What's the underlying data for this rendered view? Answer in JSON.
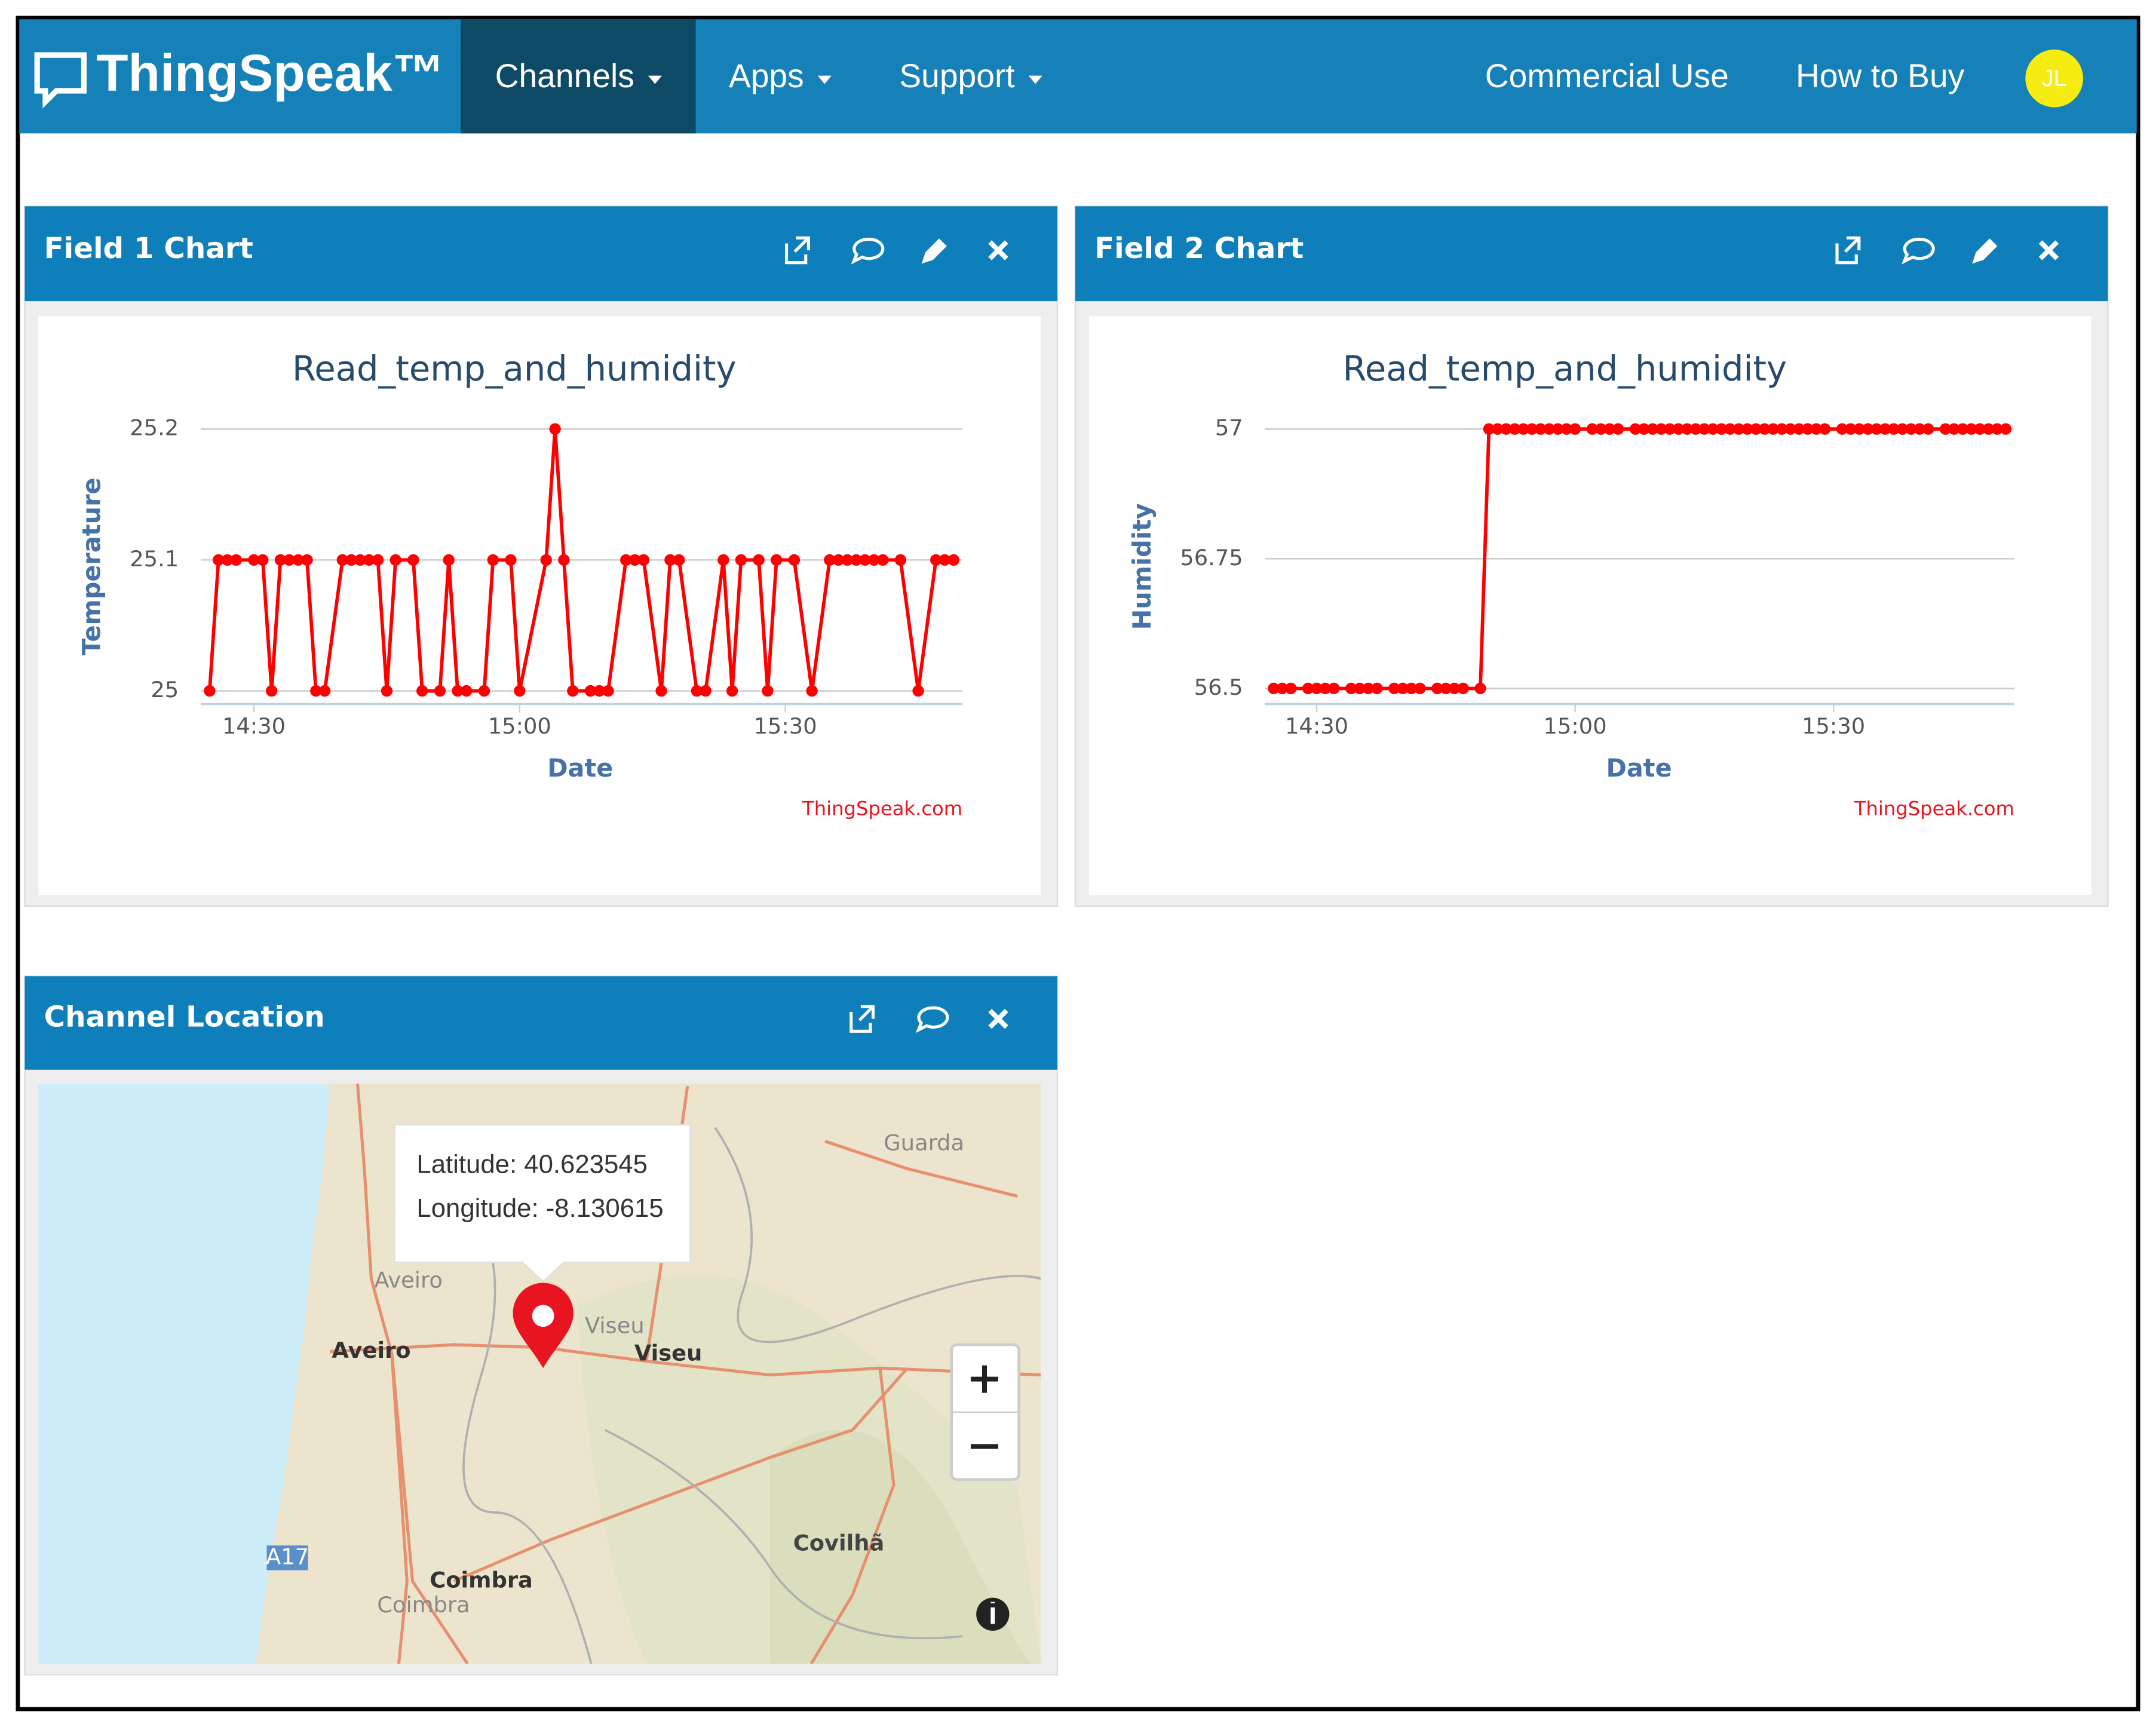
{
  "nav": {
    "logo": "ThingSpeak™",
    "menus": [
      "Channels",
      "Apps",
      "Support"
    ],
    "links": [
      "Commercial Use",
      "How to Buy"
    ],
    "avatar": "JL"
  },
  "panels": [
    {
      "title": "Field 1 Chart"
    },
    {
      "title": "Field 2 Chart"
    },
    {
      "title": "Channel Location"
    }
  ],
  "chart_data": [
    {
      "type": "line",
      "title": "Read_temp_and_humidity",
      "xlabel": "Date",
      "ylabel": "Temperature",
      "credit": "ThingSpeak.com",
      "color": "#ff0000",
      "grid": true,
      "x": [
        "14:25",
        "14:26",
        "14:27",
        "14:28",
        "14:30",
        "14:31",
        "14:32",
        "14:33",
        "14:34",
        "14:35",
        "14:36",
        "14:37",
        "14:38",
        "14:40",
        "14:41",
        "14:42",
        "14:43",
        "14:44",
        "14:45",
        "14:46",
        "14:48",
        "14:49",
        "14:51",
        "14:52",
        "14:53",
        "14:54",
        "14:56",
        "14:57",
        "14:59",
        "15:00",
        "15:03",
        "15:04",
        "15:05",
        "15:06",
        "15:08",
        "15:09",
        "15:10",
        "15:12",
        "15:13",
        "15:14",
        "15:16",
        "15:17",
        "15:18",
        "15:20",
        "15:21",
        "15:23",
        "15:24",
        "15:25",
        "15:27",
        "15:28",
        "15:29",
        "15:31",
        "15:33",
        "15:35",
        "15:36",
        "15:37",
        "15:38",
        "15:39",
        "15:40",
        "15:41",
        "15:43",
        "15:45",
        "15:47",
        "15:48",
        "15:49"
      ],
      "values": [
        25,
        25.1,
        25.1,
        25.1,
        25.1,
        25.1,
        25,
        25.1,
        25.1,
        25.1,
        25.1,
        25,
        25,
        25.1,
        25.1,
        25.1,
        25.1,
        25.1,
        25,
        25.1,
        25.1,
        25,
        25,
        25.1,
        25,
        25,
        25,
        25.1,
        25.1,
        25,
        25.1,
        25.2,
        25.1,
        25,
        25,
        25,
        25,
        25.1,
        25.1,
        25.1,
        25,
        25.1,
        25.1,
        25,
        25,
        25.1,
        25,
        25.1,
        25.1,
        25,
        25.1,
        25.1,
        25,
        25.1,
        25.1,
        25.1,
        25.1,
        25.1,
        25.1,
        25.1,
        25.1,
        25,
        25.1,
        25.1,
        25.1
      ],
      "xlim": [
        "14:24",
        "15:50"
      ],
      "xticks": [
        "14:30",
        "15:00",
        "15:30"
      ],
      "ylim": [
        24.99,
        25.2
      ],
      "yticks": [
        25,
        25.1,
        25.2
      ]
    },
    {
      "type": "line",
      "title": "Read_temp_and_humidity",
      "xlabel": "Date",
      "ylabel": "Humidity",
      "credit": "ThingSpeak.com",
      "color": "#ff0000",
      "grid": true,
      "x": [
        "14:25",
        "14:26",
        "14:27",
        "14:29",
        "14:30",
        "14:31",
        "14:32",
        "14:34",
        "14:35",
        "14:36",
        "14:37",
        "14:39",
        "14:40",
        "14:41",
        "14:42",
        "14:44",
        "14:45",
        "14:46",
        "14:47",
        "14:49",
        "14:50",
        "14:51",
        "14:52",
        "14:53",
        "14:54",
        "14:55",
        "14:56",
        "14:57",
        "14:58",
        "14:59",
        "15:00",
        "15:02",
        "15:03",
        "15:04",
        "15:05",
        "15:07",
        "15:08",
        "15:09",
        "15:10",
        "15:11",
        "15:12",
        "15:13",
        "15:14",
        "15:15",
        "15:16",
        "15:17",
        "15:18",
        "15:19",
        "15:20",
        "15:21",
        "15:22",
        "15:23",
        "15:24",
        "15:25",
        "15:26",
        "15:27",
        "15:28",
        "15:29",
        "15:31",
        "15:32",
        "15:33",
        "15:34",
        "15:35",
        "15:36",
        "15:37",
        "15:38",
        "15:39",
        "15:40",
        "15:41",
        "15:43",
        "15:44",
        "15:45",
        "15:46",
        "15:47",
        "15:48",
        "15:49",
        "15:50"
      ],
      "values": [
        56.5,
        56.5,
        56.5,
        56.5,
        56.5,
        56.5,
        56.5,
        56.5,
        56.5,
        56.5,
        56.5,
        56.5,
        56.5,
        56.5,
        56.5,
        56.5,
        56.5,
        56.5,
        56.5,
        56.5,
        57,
        57,
        57,
        57,
        57,
        57,
        57,
        57,
        57,
        57,
        57,
        57,
        57,
        57,
        57,
        57,
        57,
        57,
        57,
        57,
        57,
        57,
        57,
        57,
        57,
        57,
        57,
        57,
        57,
        57,
        57,
        57,
        57,
        57,
        57,
        57,
        57,
        57,
        57,
        57,
        57,
        57,
        57,
        57,
        57,
        57,
        57,
        57,
        57,
        57,
        57,
        57,
        57,
        57,
        57,
        57,
        57
      ],
      "xlim": [
        "14:24",
        "15:51"
      ],
      "xticks": [
        "14:30",
        "15:00",
        "15:30"
      ],
      "ylim": [
        56.47,
        57
      ],
      "yticks": [
        56.5,
        56.75,
        57
      ]
    }
  ],
  "map": {
    "tooltip": [
      "Latitude: 40.623545",
      "Longitude: -8.130615"
    ],
    "labels": [
      "Aveiro",
      "Aveiro",
      "Viseu",
      "Viseu",
      "Guarda",
      "Coimbra",
      "Coimbra",
      "Covilhã",
      "A17"
    ]
  }
}
